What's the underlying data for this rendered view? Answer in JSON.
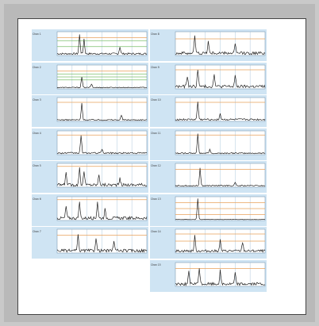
{
  "chart_data": [
    {
      "type": "line",
      "label": "Chan 1",
      "ylabel": "Amplitude",
      "xlabel": "Frequency",
      "xlim": [
        0,
        600
      ],
      "ylim": [
        0,
        0.4
      ],
      "peaks": [
        [
          150,
          0.32
        ],
        [
          180,
          0.25
        ],
        [
          420,
          0.12
        ]
      ],
      "noise": 0.03,
      "guides": {
        "orange": 0.3,
        "green": [
          0.25,
          0.15
        ]
      }
    },
    {
      "type": "line",
      "label": "Chan 2",
      "ylabel": "Amplitude",
      "xlabel": "Frequency",
      "xlim": [
        0,
        600
      ],
      "ylim": [
        0,
        0.4
      ],
      "peaks": [
        [
          165,
          0.18
        ],
        [
          230,
          0.06
        ]
      ],
      "noise": 0.015,
      "guides": {
        "orange": 0.3,
        "green": [
          0.25,
          0.2,
          0.15
        ]
      }
    },
    {
      "type": "line",
      "label": "Chan 3",
      "ylabel": "Amplitude",
      "xlabel": "Frequency",
      "xlim": [
        0,
        600
      ],
      "ylim": [
        0,
        0.4
      ],
      "peaks": [
        [
          165,
          0.28
        ],
        [
          430,
          0.08
        ]
      ],
      "noise": 0.02,
      "guides": {
        "orange": 0.32
      }
    },
    {
      "type": "line",
      "label": "Chan 4",
      "ylabel": "Amplitude",
      "xlabel": "Frequency",
      "xlim": [
        0,
        600
      ],
      "ylim": [
        0,
        0.4
      ],
      "peaks": [
        [
          160,
          0.3
        ],
        [
          300,
          0.07
        ]
      ],
      "noise": 0.025,
      "guides": {
        "orange": 0.33
      }
    },
    {
      "type": "line",
      "label": "Chan 5",
      "ylabel": "Amplitude",
      "xlabel": "Frequency",
      "xlim": [
        0,
        600
      ],
      "ylim": [
        0,
        0.4
      ],
      "peaks": [
        [
          60,
          0.22
        ],
        [
          150,
          0.3
        ],
        [
          180,
          0.24
        ],
        [
          280,
          0.18
        ],
        [
          420,
          0.1
        ]
      ],
      "noise": 0.05,
      "guides": {
        "orange": 0.35
      }
    },
    {
      "type": "line",
      "label": "Chan 6",
      "ylabel": "Amplitude",
      "xlabel": "Frequency",
      "xlim": [
        0,
        600
      ],
      "ylim": [
        0,
        0.4
      ],
      "peaks": [
        [
          60,
          0.2
        ],
        [
          150,
          0.26
        ],
        [
          270,
          0.28
        ],
        [
          320,
          0.15
        ]
      ],
      "noise": 0.05,
      "guides": {
        "orange": 0.35
      }
    },
    {
      "type": "line",
      "label": "Chan 7",
      "ylabel": "Amplitude",
      "xlabel": "Frequency",
      "xlim": [
        0,
        600
      ],
      "ylim": [
        0,
        0.4
      ],
      "peaks": [
        [
          140,
          0.25
        ],
        [
          260,
          0.22
        ],
        [
          380,
          0.18
        ]
      ],
      "noise": 0.05,
      "guides": {
        "orange": 0.3
      }
    },
    {
      "type": "line",
      "label": "Chan 8",
      "ylabel": "Amplitude",
      "xlabel": "Frequency",
      "xlim": [
        0,
        600
      ],
      "ylim": [
        0,
        0.4
      ],
      "peaks": [
        [
          130,
          0.3
        ],
        [
          220,
          0.2
        ],
        [
          400,
          0.15
        ]
      ],
      "noise": 0.05,
      "guides": {
        "orange": 0.28
      }
    },
    {
      "type": "line",
      "label": "Chan 9",
      "ylabel": "Amplitude",
      "xlabel": "Frequency",
      "xlim": [
        0,
        600
      ],
      "ylim": [
        0,
        0.4
      ],
      "peaks": [
        [
          80,
          0.18
        ],
        [
          150,
          0.3
        ],
        [
          260,
          0.22
        ],
        [
          400,
          0.18
        ]
      ],
      "noise": 0.05,
      "guides": {
        "orange": 0.32
      }
    },
    {
      "type": "line",
      "label": "Chan 10",
      "ylabel": "Amplitude",
      "xlabel": "Frequency",
      "xlim": [
        0,
        600
      ],
      "ylim": [
        0,
        0.4
      ],
      "peaks": [
        [
          150,
          0.3
        ],
        [
          300,
          0.1
        ]
      ],
      "noise": 0.03,
      "guides": {
        "orange": 0.32
      }
    },
    {
      "type": "line",
      "label": "Chan 11",
      "ylabel": "Amplitude",
      "xlabel": "Frequency",
      "xlim": [
        0,
        600
      ],
      "ylim": [
        0,
        0.4
      ],
      "peaks": [
        [
          150,
          0.32
        ],
        [
          230,
          0.06
        ]
      ],
      "noise": 0.02,
      "guides": {
        "orange": 0.33
      }
    },
    {
      "type": "line",
      "label": "Chan 12",
      "ylabel": "Amplitude",
      "xlabel": "Frequency",
      "xlim": [
        0,
        600
      ],
      "ylim": [
        0,
        0.4
      ],
      "peaks": [
        [
          165,
          0.3
        ],
        [
          400,
          0.05
        ]
      ],
      "noise": 0.02,
      "guides": {
        "orange": 0.3
      }
    },
    {
      "type": "line",
      "label": "Chan 13",
      "ylabel": "Amplitude",
      "xlabel": "Frequency",
      "xlim": [
        0,
        600
      ],
      "ylim": [
        0,
        0.4
      ],
      "peaks": [
        [
          150,
          0.35
        ]
      ],
      "noise": 0.005,
      "guides": {
        "orange": [
          0.3,
          0.2,
          0.1
        ]
      }
    },
    {
      "type": "line",
      "label": "Chan 14",
      "ylabel": "Amplitude",
      "xlabel": "Frequency",
      "xlim": [
        0,
        600
      ],
      "ylim": [
        0,
        0.4
      ],
      "peaks": [
        [
          130,
          0.25
        ],
        [
          300,
          0.18
        ],
        [
          450,
          0.15
        ]
      ],
      "noise": 0.04,
      "guides": {
        "orange": [
          0.32,
          0.2
        ]
      }
    },
    {
      "type": "line",
      "label": "Chan 15",
      "ylabel": "Amplitude",
      "xlabel": "Frequency",
      "xlim": [
        0,
        600
      ],
      "ylim": [
        0,
        0.4
      ],
      "peaks": [
        [
          90,
          0.2
        ],
        [
          160,
          0.28
        ],
        [
          300,
          0.22
        ],
        [
          400,
          0.18
        ]
      ],
      "noise": 0.05,
      "guides": {
        "orange": 0.3
      }
    }
  ],
  "style": {
    "panel_bg": "#cfe4f3",
    "plot_bg": "#ffffff",
    "trace": "#222222",
    "orange": "#e8a05a",
    "green": "#7bbf6a",
    "grid": "#9bbbd4"
  }
}
